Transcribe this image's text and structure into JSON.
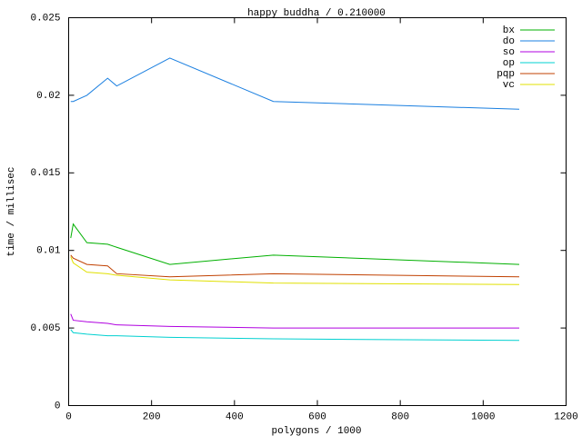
{
  "chart_data": {
    "type": "line",
    "title": "happy buddha / 0.210000",
    "xlabel": "polygons / 1000",
    "ylabel": "time / millisec",
    "xlim": [
      0,
      1200
    ],
    "ylim": [
      0,
      0.025
    ],
    "xticks": [
      0,
      200,
      400,
      600,
      800,
      1000,
      1200
    ],
    "yticks": [
      0,
      0.005,
      0.01,
      0.015,
      0.02,
      0.025
    ],
    "x": [
      5,
      11,
      44,
      94,
      116,
      244,
      494,
      1087
    ],
    "series": [
      {
        "name": "bx",
        "color": "#00b000",
        "values": [
          0.0108,
          0.0117,
          0.0105,
          0.0104,
          0.0102,
          0.0091,
          0.0097,
          0.0091
        ]
      },
      {
        "name": "do",
        "color": "#1a7fe0",
        "values": [
          0.0196,
          0.0196,
          0.02,
          0.0211,
          0.0206,
          0.0224,
          0.0196,
          0.0191
        ]
      },
      {
        "name": "so",
        "color": "#b000e0",
        "values": [
          0.0059,
          0.0055,
          0.0054,
          0.0053,
          0.0052,
          0.0051,
          0.005,
          0.005
        ]
      },
      {
        "name": "op",
        "color": "#00d0d0",
        "values": [
          0.0049,
          0.0047,
          0.0046,
          0.0045,
          0.0045,
          0.0044,
          0.0043,
          0.0042
        ]
      },
      {
        "name": "pqp",
        "color": "#c04000",
        "values": [
          0.0097,
          0.0095,
          0.0091,
          0.009,
          0.0085,
          0.0083,
          0.0085,
          0.0083
        ]
      },
      {
        "name": "vc",
        "color": "#e0e000",
        "values": [
          0.0096,
          0.0092,
          0.0086,
          0.0085,
          0.0084,
          0.0081,
          0.0079,
          0.0078
        ]
      }
    ]
  }
}
